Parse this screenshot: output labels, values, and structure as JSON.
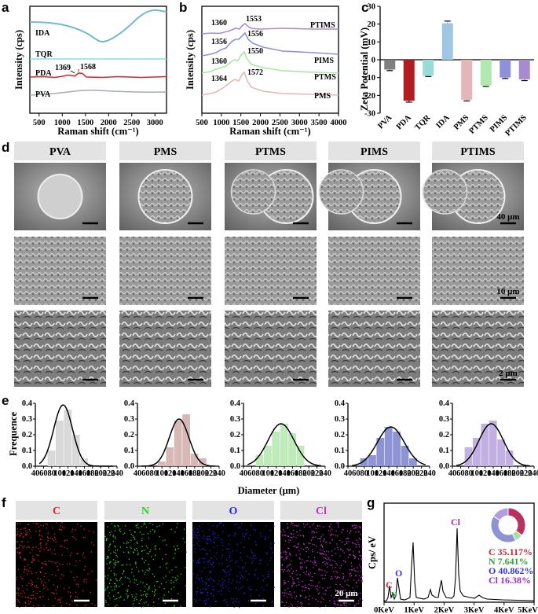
{
  "panels": {
    "a": "a",
    "b": "b",
    "c": "c",
    "d": "d",
    "e": "e",
    "f": "f",
    "g": "g"
  },
  "chart_data": [
    {
      "id": "a",
      "type": "line",
      "title": "",
      "xlabel": "Raman shift (cm⁻¹)",
      "ylabel": "Intensity (cps)",
      "xlim": [
        300,
        3250
      ],
      "x_ticks": [
        500,
        1000,
        1500,
        2000,
        2500,
        3000
      ],
      "series": [
        {
          "name": "IDA",
          "color": "#74b9d3"
        },
        {
          "name": "TQR",
          "color": "#7fe3e0"
        },
        {
          "name": "PDA",
          "color": "#d7282f"
        },
        {
          "name": "PVA",
          "color": "#b0a8ab"
        }
      ],
      "annotations": [
        "1369",
        "1568"
      ]
    },
    {
      "id": "b",
      "type": "line",
      "xlabel": "Raman shift (cm⁻¹)",
      "ylabel": "Intensity (cps)",
      "xlim": [
        500,
        4000
      ],
      "x_ticks": [
        500,
        1000,
        1500,
        2000,
        2500,
        3000,
        3500,
        4000
      ],
      "series": [
        {
          "name": "PTIMS",
          "color": "#a98dcf",
          "peaks": [
            "1360",
            "1553"
          ]
        },
        {
          "name": "PIMS",
          "color": "#8e93d6",
          "peaks": [
            "1356",
            "1556"
          ]
        },
        {
          "name": "PTMS",
          "color": "#a8e6a4",
          "peaks": [
            "1360",
            "1550"
          ]
        },
        {
          "name": "PMS",
          "color": "#e6b8b8",
          "peaks": [
            "1364",
            "1572"
          ]
        }
      ]
    },
    {
      "id": "c",
      "type": "bar",
      "ylabel": "Zeta Potential (mV)",
      "ylim": [
        -30,
        30
      ],
      "y_ticks": [
        -30,
        -20,
        -10,
        0,
        10,
        20,
        30
      ],
      "categories": [
        "PVA",
        "PDA",
        "TQR",
        "IDA",
        "PMS",
        "PTMS",
        "PIMS",
        "PTIMS"
      ],
      "values": [
        -5.5,
        -23,
        -9,
        20.5,
        -22.5,
        -14.5,
        -10,
        -11
      ],
      "errors": [
        0.6,
        0.8,
        0.4,
        1.2,
        0.6,
        0.5,
        0.5,
        0.7
      ],
      "colors": [
        "#7f7f7f",
        "#b01d20",
        "#9adbd8",
        "#9fc6e4",
        "#e2b6ba",
        "#b0e8ae",
        "#8f91d8",
        "#a88ad0"
      ]
    },
    {
      "id": "e",
      "type": "bar",
      "xlabel": "Diameter (μm)",
      "ylabel": "Frequence",
      "ylim": [
        0,
        0.4
      ],
      "xlim": [
        40,
        240
      ],
      "x_ticks": [
        40,
        60,
        80,
        100,
        120,
        140,
        160,
        180,
        200,
        220,
        240
      ],
      "y_ticks": [
        0.0,
        0.1,
        0.2,
        0.3,
        0.4
      ],
      "series": [
        {
          "name": "PVA",
          "color": "#d9d9d9",
          "bin_centers": [
            80,
            100,
            120,
            140,
            160
          ],
          "values": [
            0.1,
            0.29,
            0.36,
            0.2,
            0.05
          ],
          "fit_mean": 108,
          "fit_sd": 23,
          "fit_peak": 0.39
        },
        {
          "name": "PMS",
          "color": "#d8b8b6",
          "bin_centers": [
            100,
            120,
            140,
            160,
            180,
            200
          ],
          "values": [
            0.03,
            0.12,
            0.29,
            0.33,
            0.08,
            0.05
          ],
          "fit_mean": 142,
          "fit_sd": 24,
          "fit_peak": 0.3
        },
        {
          "name": "PTMS",
          "color": "#bfeab9",
          "bin_centers": [
            80,
            100,
            120,
            140,
            160,
            180
          ],
          "values": [
            0.07,
            0.13,
            0.22,
            0.27,
            0.21,
            0.13
          ],
          "fit_mean": 132,
          "fit_sd": 32,
          "fit_peak": 0.27
        },
        {
          "name": "PIMS",
          "color": "#8d93d3",
          "bin_centers": [
            80,
            100,
            120,
            140,
            160,
            180,
            200
          ],
          "values": [
            0.05,
            0.07,
            0.18,
            0.25,
            0.22,
            0.13,
            0.05
          ],
          "fit_mean": 145,
          "fit_sd": 33,
          "fit_peak": 0.25
        },
        {
          "name": "PTIMS",
          "color": "#c3b0e3",
          "bin_centers": [
            80,
            100,
            120,
            140,
            160,
            180
          ],
          "values": [
            0.12,
            0.18,
            0.27,
            0.29,
            0.17,
            0.1
          ],
          "fit_mean": 135,
          "fit_sd": 30,
          "fit_peak": 0.27
        }
      ]
    },
    {
      "id": "g",
      "type": "line",
      "ylabel": "Cps/ eV",
      "x_ticks": [
        "0KeV",
        "1KeV",
        "2KeV",
        "3KeV",
        "4KeV",
        "5KeV"
      ],
      "peak_labels": [
        "C",
        "N",
        "O",
        "Cl"
      ],
      "composition": [
        {
          "element": "C",
          "percent": "35.117%",
          "value": 35.117,
          "color": "#c8253a"
        },
        {
          "element": "N",
          "percent": "7.641%",
          "value": 7.641,
          "color": "#2ea33a"
        },
        {
          "element": "O",
          "percent": "40.862%",
          "value": 40.862,
          "color": "#3437d3"
        },
        {
          "element": "Cl",
          "percent": "16.38%",
          "value": 16.38,
          "color": "#9b2fb7"
        }
      ],
      "donut_colors": [
        "#b8325f",
        "#a3e0a0",
        "#8d93d3",
        "#b39be0"
      ]
    }
  ],
  "sem": {
    "columns": [
      "PVA",
      "PMS",
      "PTMS",
      "PIMS",
      "PTIMS"
    ],
    "scalebars": [
      "40 μm",
      "10 μm",
      "2 μm"
    ]
  },
  "eds": {
    "maps": [
      {
        "label": "C",
        "color": "#e0232b"
      },
      {
        "label": "N",
        "color": "#2bd12b"
      },
      {
        "label": "O",
        "color": "#2626ee"
      },
      {
        "label": "Cl",
        "color": "#c533c8"
      }
    ],
    "scalebar": "20 μm"
  }
}
